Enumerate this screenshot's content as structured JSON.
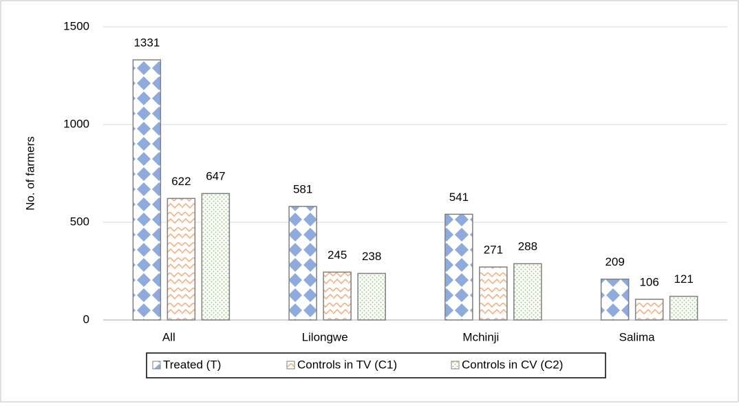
{
  "chart_data": {
    "type": "bar",
    "y_label": "No. of farmers",
    "categories": [
      "All",
      "Lilongwe",
      "Mchinji",
      "Salima"
    ],
    "series": [
      {
        "name": "Treated (T)",
        "color": "#8faadc",
        "values": [
          1331,
          581,
          541,
          209
        ]
      },
      {
        "name": "Controls in TV (C1)",
        "color": "#f4b183",
        "values": [
          622,
          245,
          271,
          106
        ]
      },
      {
        "name": "Controls in CV (C2)",
        "color": "#a9d18e",
        "values": [
          647,
          238,
          288,
          121
        ]
      }
    ],
    "ylim": [
      0,
      1500
    ],
    "yticks": [
      0,
      500,
      1000,
      1500
    ],
    "grid": true,
    "legend": "bottom"
  }
}
